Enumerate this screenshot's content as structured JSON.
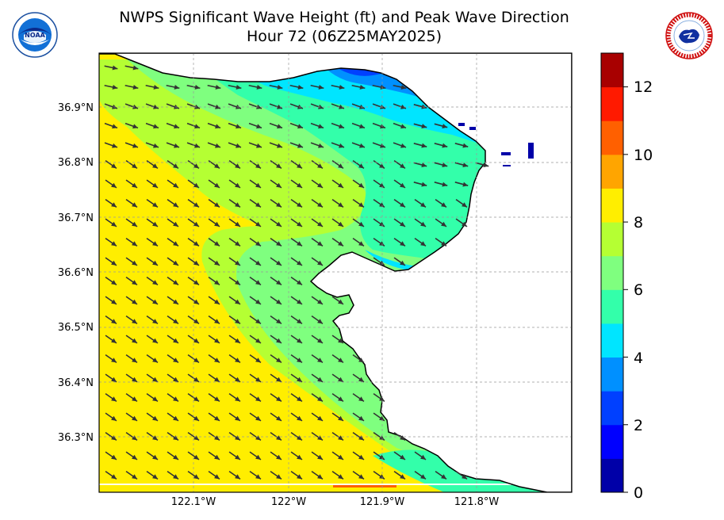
{
  "title": "NWPS Significant Wave Height (ft) and Peak Wave Direction",
  "subtitle": "Hour 72 (06Z25MAY2025)",
  "logos": {
    "left": {
      "icon": "noaa-logo-icon",
      "text": "NOAA"
    },
    "right": {
      "icon": "nws-logo-icon"
    }
  },
  "map_data": {
    "type": "filled-contour-map",
    "variable": "Significant Wave Height (ft)",
    "vectors": "Peak Wave Direction",
    "lon_range": [
      -122.2,
      -121.7
    ],
    "lat_range": [
      36.2,
      37.0
    ],
    "lat_ticks": [
      "36.9°N",
      "36.8°N",
      "36.7°N",
      "36.6°N",
      "36.5°N",
      "36.4°N",
      "36.3°N"
    ],
    "lon_ticks": [
      "122.1°W",
      "122°W",
      "121.9°W",
      "121.8°W"
    ],
    "grid": true
  },
  "colorbar": {
    "levels": [
      0,
      1,
      2,
      3,
      4,
      5,
      6,
      7,
      8,
      9,
      10,
      11,
      12,
      13
    ],
    "colors": [
      "#0000a8",
      "#0000ff",
      "#0040ff",
      "#0090ff",
      "#00e5ff",
      "#33ffaa",
      "#7fff7f",
      "#b5ff33",
      "#ffee00",
      "#ffa500",
      "#ff6000",
      "#ff1a00",
      "#a80000"
    ],
    "tick_labels": [
      "0",
      "2",
      "4",
      "6",
      "8",
      "10",
      "12"
    ]
  },
  "colors": {
    "land": "#ffffff",
    "coast": "#000000",
    "arrow": "#333333"
  }
}
